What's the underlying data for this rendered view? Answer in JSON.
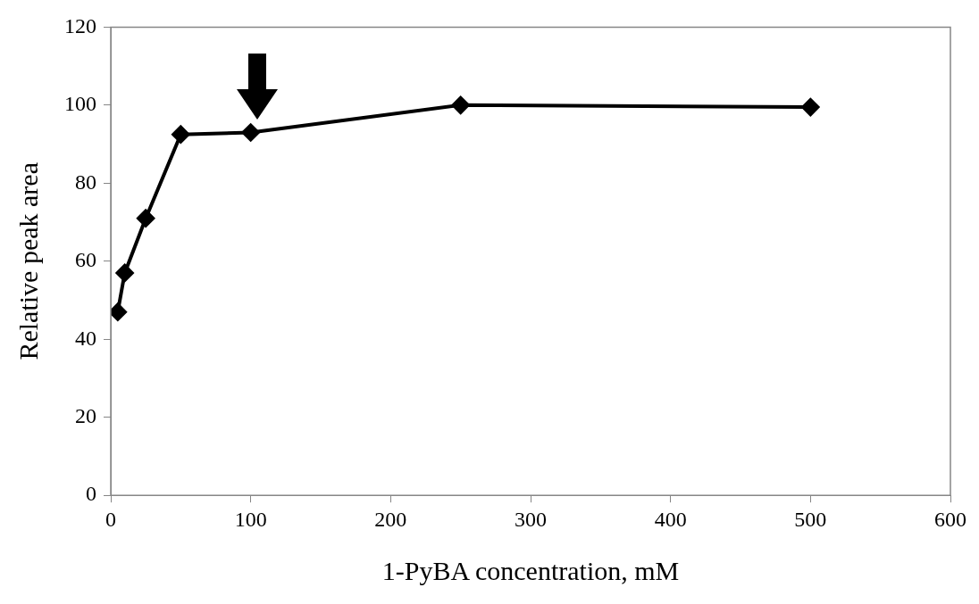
{
  "chart_data": {
    "type": "line",
    "xlabel": "1-PyBA concentration, mM",
    "ylabel": "Relative peak area",
    "x": [
      5,
      10,
      25,
      50,
      100,
      250,
      500
    ],
    "series": [
      {
        "color": "#000000",
        "values": [
          47,
          57,
          71,
          92.5,
          93,
          100,
          99.5
        ]
      }
    ],
    "xlim": [
      0,
      600
    ],
    "xticks": [
      0,
      100,
      200,
      300,
      400,
      500,
      600
    ],
    "ylim": [
      0,
      120
    ],
    "yticks": [
      0,
      20,
      40,
      60,
      80,
      100,
      120
    ],
    "grid": false,
    "legend": false,
    "marker": "diamond",
    "line_style": "solid"
  }
}
